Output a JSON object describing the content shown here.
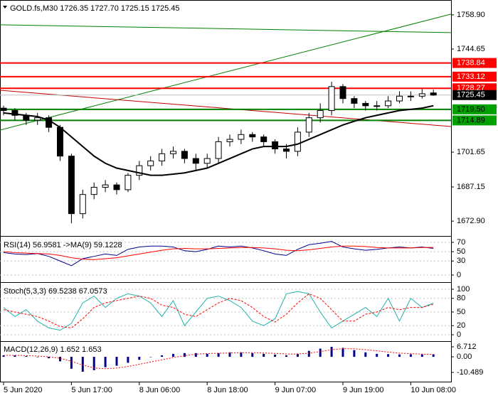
{
  "chart_data": [
    {
      "type": "candlestick",
      "title": "GOLD.fs,M30  1726.35 1727.70 1725.15 1725.45",
      "categories": [
        "5 Jun 2020",
        null,
        null,
        null,
        null,
        null,
        "5 Jun 17:00",
        null,
        null,
        null,
        null,
        null,
        "8 Jun 06:00",
        null,
        null,
        null,
        null,
        null,
        "8 Jun 18:00",
        null,
        null,
        null,
        null,
        null,
        "9 Jun 07:00",
        null,
        null,
        null,
        null,
        null,
        "9 Jun 19:00",
        null,
        null,
        null,
        null,
        null,
        "10 Jun 08:00",
        null,
        null
      ],
      "open": [
        1720,
        1719,
        1717,
        1715,
        1716,
        1712,
        1700,
        1676,
        1684,
        1687,
        1688,
        1686,
        1692,
        1696,
        1698,
        1701,
        1702,
        1699,
        1697,
        1699,
        1706,
        1707,
        1709,
        1708,
        1706,
        1703,
        1702,
        1710,
        1716,
        1719,
        1729,
        1724,
        1722,
        1721,
        1721,
        1723,
        1725,
        1725,
        1726.35
      ],
      "high": [
        1721,
        1720,
        1718,
        1718,
        1717,
        1713,
        1701,
        1686,
        1689,
        1690,
        1689,
        1693,
        1698,
        1700,
        1703,
        1704,
        1703,
        1701,
        1701,
        1708,
        1709,
        1711,
        1710,
        1709,
        1707,
        1705,
        1712,
        1718,
        1722,
        1731,
        1730,
        1725,
        1723,
        1723,
        1725,
        1727,
        1727,
        1728,
        1727.7
      ],
      "low": [
        1717,
        1715,
        1713,
        1713,
        1710,
        1698,
        1672,
        1674,
        1682,
        1685,
        1684,
        1685,
        1690,
        1694,
        1696,
        1699,
        1697,
        1694,
        1695,
        1697,
        1704,
        1705,
        1706,
        1704,
        1701,
        1699,
        1700,
        1708,
        1714,
        1717,
        1722,
        1720,
        1719,
        1719,
        1720,
        1722,
        1723,
        1724,
        1725.15
      ],
      "close": [
        1719,
        1717,
        1715,
        1716,
        1712,
        1700,
        1676,
        1684,
        1687,
        1688,
        1686,
        1692,
        1696,
        1698,
        1701,
        1702,
        1699,
        1697,
        1699,
        1706,
        1707,
        1709,
        1708,
        1706,
        1703,
        1702,
        1710,
        1716,
        1719,
        1729,
        1724,
        1722,
        1721,
        1721,
        1723,
        1725,
        1725,
        1726,
        1725.45
      ],
      "ma": {
        "color": "#000000",
        "values": [
          1718,
          1717.5,
          1717,
          1716.5,
          1715,
          1712,
          1708,
          1704,
          1700,
          1697,
          1695,
          1694,
          1693,
          1692,
          1692,
          1692.5,
          1693,
          1694,
          1695,
          1697,
          1699,
          1701,
          1703,
          1704,
          1704,
          1704,
          1705,
          1707,
          1709,
          1711,
          1713,
          1714.5,
          1716,
          1717,
          1718,
          1719,
          1719.5,
          1720,
          1721
        ]
      },
      "levels": {
        "values": [
          1738.84,
          1733.12,
          1728.27,
          1725.45,
          1719.5,
          1714.89
        ],
        "value_labels": [
          "1738.84",
          "1733.12",
          "1728.27",
          "1725.45",
          "1719.50",
          "1714.89"
        ],
        "colors": [
          "#ff0000",
          "#ff0000",
          "#ff0000",
          "#000000",
          "#00a000",
          "#00a000"
        ],
        "line_colors": [
          "#ff0000",
          "#ff0000",
          "#ff0000",
          "#c0c0c0",
          "#008000",
          "#008000"
        ],
        "text_colors": [
          "#ffffff",
          "#ffffff",
          "#ffffff",
          "#ffffff",
          "#000000",
          "#000000"
        ]
      },
      "trendlines": [
        {
          "color": "#008000",
          "values": [
            1710.86,
            1759.2
          ]
        },
        {
          "color": "#008000",
          "values": [
            1754.75,
            1751.5
          ]
        },
        {
          "color": "#c00000",
          "values": [
            1727.46,
            1712.34
          ]
        }
      ],
      "up_color": "#ffffff",
      "down_color": "#000000",
      "ylim": [
        1667.3,
        1764.5
      ],
      "yticks": [
        {
          "value": 1758.9,
          "label": "1758.90"
        },
        1744.65,
        1701.65,
        1687.15,
        {
          "value": 1672.9,
          "label": "1672.90"
        }
      ]
    },
    {
      "type": "line",
      "title": "RSI(14) 56.9581 ->MA(9) 59.1228",
      "series": [
        {
          "color": "#00008b",
          "values": [
            48,
            45,
            44,
            46,
            40,
            30,
            20,
            35,
            40,
            45,
            42,
            55,
            60,
            62,
            62,
            60,
            52,
            50,
            55,
            62,
            60,
            62,
            58,
            52,
            45,
            42,
            55,
            65,
            68,
            72,
            60,
            56,
            53,
            55,
            58,
            60,
            58,
            60,
            56.9581
          ]
        },
        {
          "color": "#ff0000",
          "values": [
            50,
            48,
            47,
            46,
            45,
            42,
            37,
            34,
            33,
            35,
            37,
            41,
            45,
            49,
            53,
            56,
            57,
            56,
            56,
            57,
            58,
            59,
            59,
            58,
            56,
            53,
            52,
            54,
            57,
            60,
            62,
            62,
            61,
            59,
            58,
            58,
            58,
            59,
            59.1228
          ]
        }
      ],
      "ylim": [
        -12.2,
        79.1
      ],
      "yticks": [
        70,
        50,
        30,
        0
      ],
      "grid": true
    },
    {
      "type": "line",
      "title": "Stoch(5,3,3) 69.5238 67.0573",
      "series": [
        {
          "color": "#20b2aa",
          "values": [
            60,
            40,
            55,
            30,
            15,
            10,
            25,
            70,
            85,
            60,
            80,
            90,
            85,
            70,
            40,
            75,
            20,
            50,
            80,
            85,
            75,
            60,
            30,
            20,
            35,
            90,
            95,
            90,
            50,
            15,
            30,
            45,
            60,
            40,
            80,
            30,
            80,
            60,
            69.5238
          ]
        },
        {
          "color": "#ff0000",
          "dashed": true,
          "values": [
            55,
            50,
            45,
            40,
            30,
            18,
            15,
            35,
            60,
            70,
            75,
            80,
            85,
            80,
            65,
            60,
            45,
            40,
            55,
            70,
            80,
            75,
            60,
            40,
            28,
            45,
            70,
            90,
            80,
            55,
            30,
            30,
            45,
            50,
            60,
            55,
            60,
            60,
            67.0573
          ]
        }
      ],
      "ylim": [
        -10.9,
        110.9
      ],
      "yticks": [
        100,
        80,
        50,
        20,
        0
      ],
      "grid": true
    },
    {
      "type": "macd",
      "title": "MACD(12,26,9) 1.652 1.653",
      "series": [
        {
          "color": "#00008b",
          "values": [
            1,
            1,
            0.5,
            0,
            -1,
            -3,
            -8,
            -10,
            -9,
            -7,
            -6,
            -4,
            -2,
            0,
            1,
            2,
            2.5,
            2.5,
            2,
            2.5,
            3,
            3,
            2.5,
            2,
            1.5,
            1,
            2,
            4,
            5.5,
            6.7,
            6,
            4.5,
            3,
            2,
            1.8,
            1.6,
            1.7,
            1.65,
            1.652
          ]
        },
        {
          "color": "#ff0000",
          "dashed": true,
          "values": [
            1,
            1,
            0.8,
            0.5,
            0,
            -1,
            -3,
            -5.5,
            -7.5,
            -8,
            -7.5,
            -6.5,
            -5,
            -3.5,
            -2,
            -0.5,
            0.8,
            1.8,
            2.2,
            2.4,
            2.6,
            2.8,
            2.8,
            2.6,
            2.3,
            1.9,
            1.9,
            2.5,
            3.5,
            4.8,
            5.5,
            5.4,
            4.8,
            4,
            3.2,
            2.5,
            2.1,
            1.8,
            1.653
          ]
        }
      ],
      "ylim": [
        -16.22,
        9.58
      ],
      "yticks": [
        6.712,
        {
          "value": 0,
          "label": "0.00"
        },
        -10.489
      ]
    }
  ]
}
